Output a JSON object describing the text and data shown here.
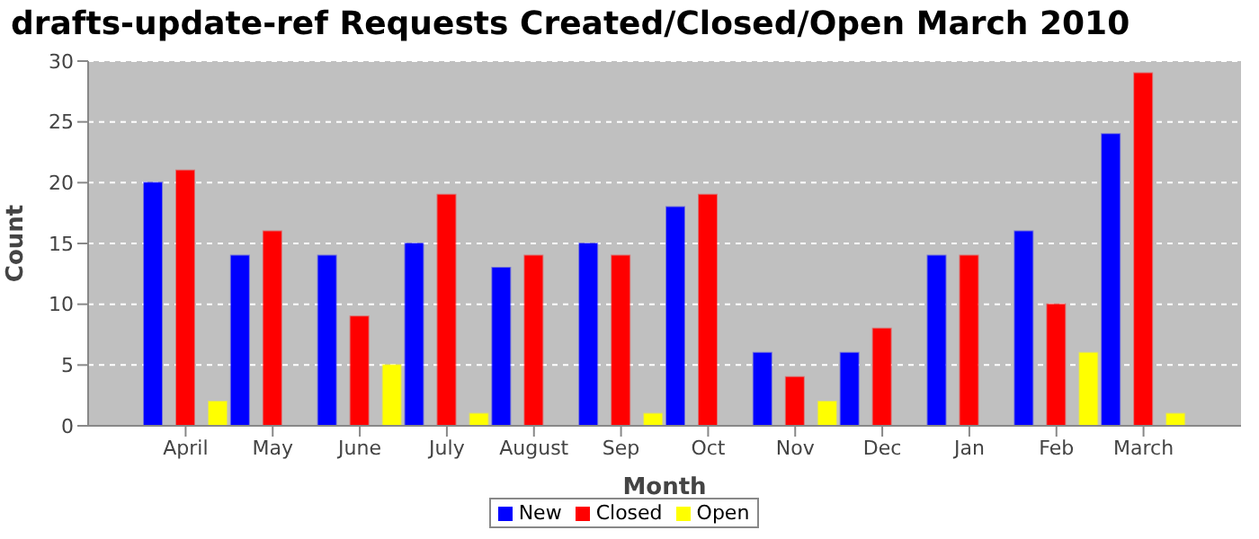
{
  "chart_data": {
    "type": "bar",
    "title": "drafts-update-ref Requests Created/Closed/Open March 2010",
    "xlabel": "Month",
    "ylabel": "Count",
    "categories": [
      "April",
      "May",
      "June",
      "July",
      "August",
      "Sep",
      "Oct",
      "Nov",
      "Dec",
      "Jan",
      "Feb",
      "March"
    ],
    "series": [
      {
        "name": "New",
        "color": "#0000ff",
        "values": [
          20,
          14,
          14,
          15,
          13,
          15,
          18,
          6,
          6,
          14,
          16,
          24
        ]
      },
      {
        "name": "Closed",
        "color": "#ff0000",
        "values": [
          21,
          16,
          9,
          19,
          14,
          14,
          19,
          4,
          8,
          14,
          10,
          29
        ]
      },
      {
        "name": "Open",
        "color": "#ffff00",
        "values": [
          2,
          0,
          5,
          1,
          0,
          1,
          0,
          2,
          0,
          0,
          6,
          1
        ]
      }
    ],
    "ylim": [
      0,
      30
    ],
    "yticks": [
      0,
      5,
      10,
      15,
      20,
      25,
      30
    ],
    "grid": "y",
    "legend": "bottom"
  }
}
